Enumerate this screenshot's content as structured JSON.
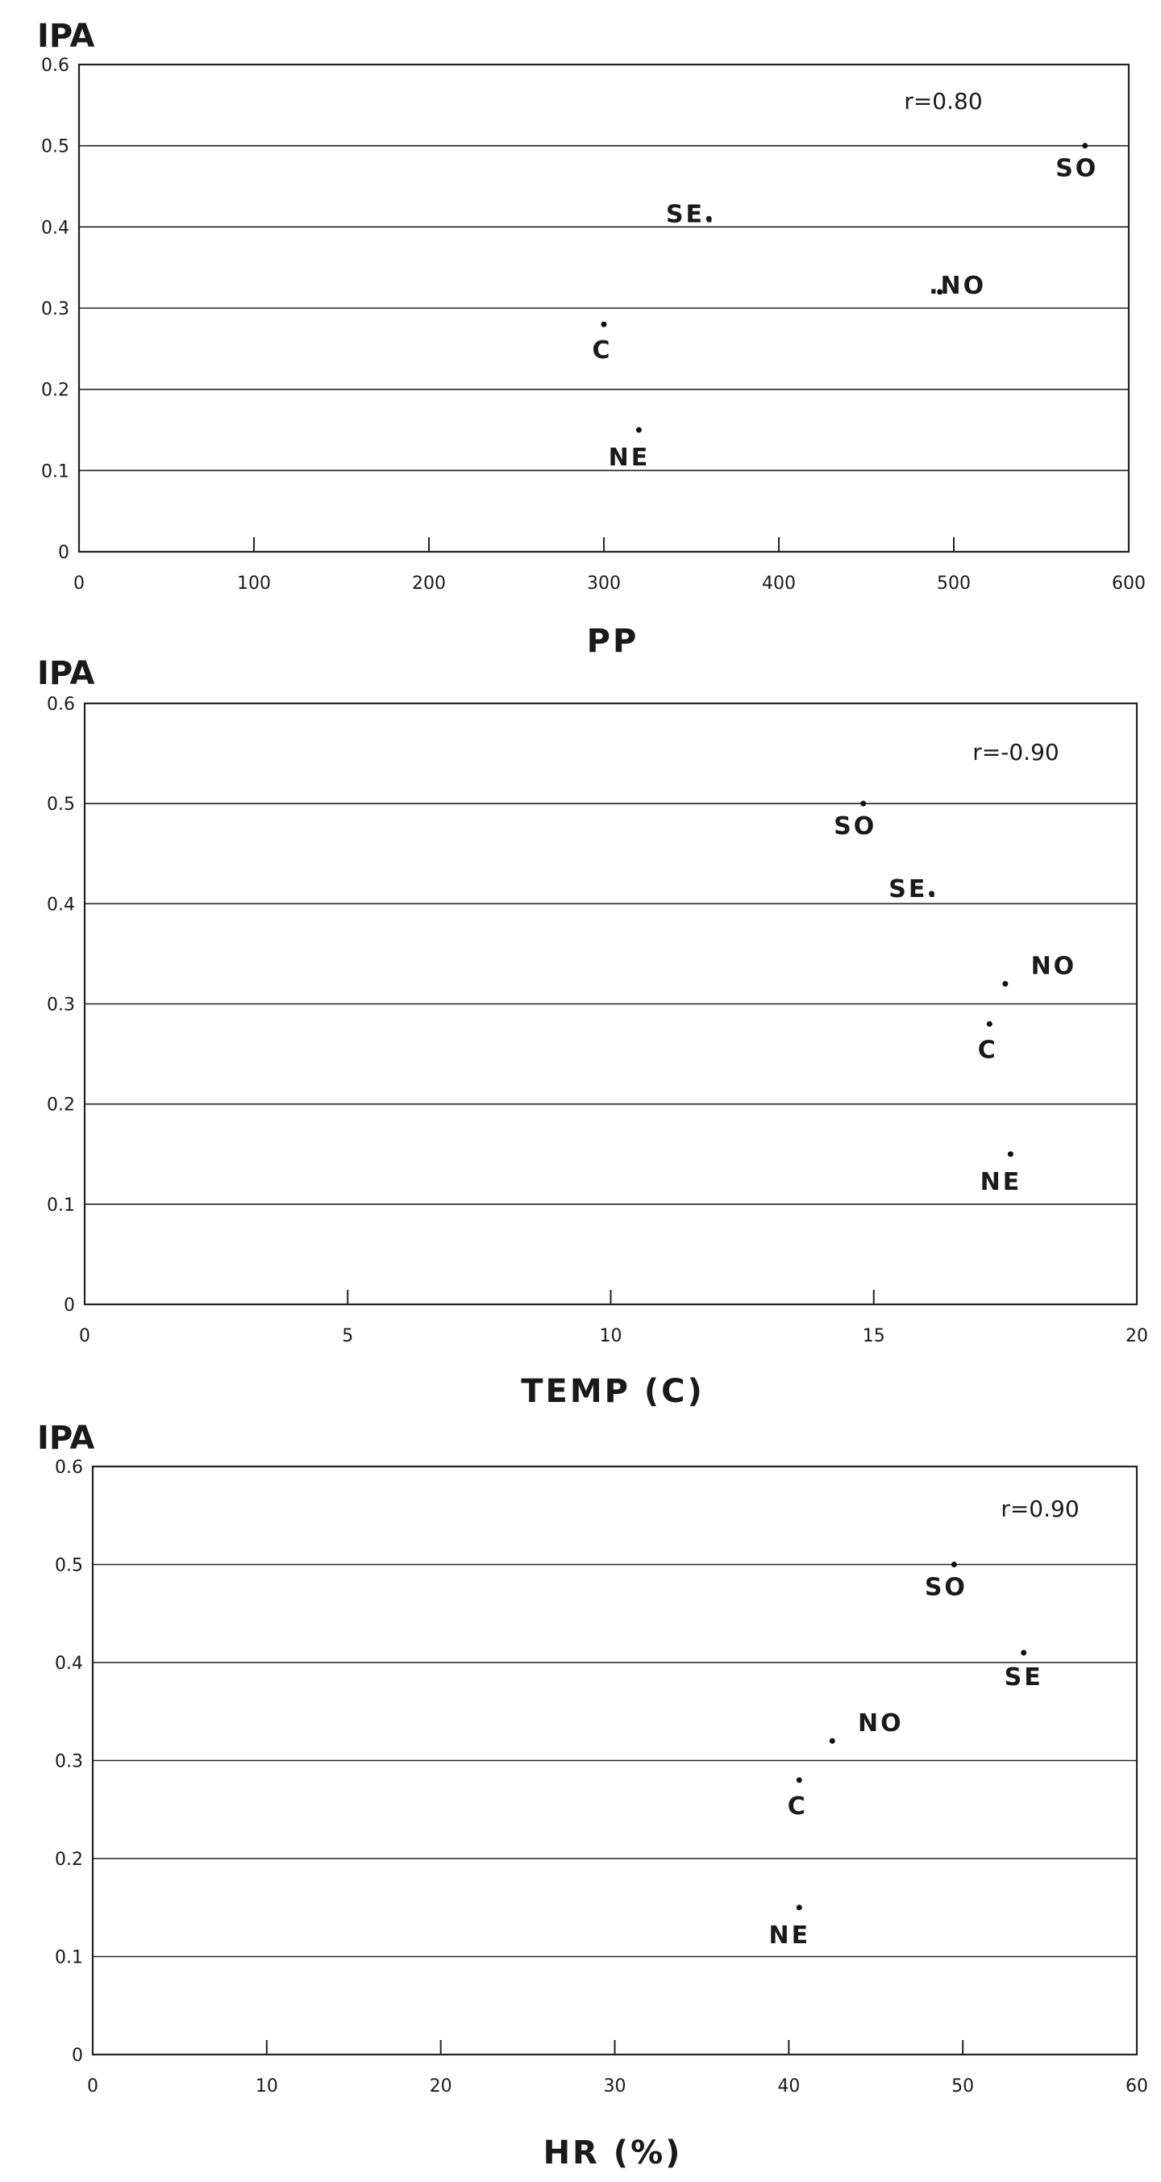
{
  "chart_data": [
    {
      "type": "scatter",
      "ylabel": "IPA",
      "xlabel": "PP",
      "correlation": "r=0.80",
      "xlim": [
        0,
        600
      ],
      "ylim": [
        0,
        0.6
      ],
      "xticks": [
        "0",
        "100",
        "200",
        "300",
        "400",
        "500",
        "600"
      ],
      "yticks": [
        "0",
        "0.1",
        "0.2",
        "0.3",
        "0.4",
        "0.5",
        "0.6"
      ],
      "grid": true,
      "points": [
        {
          "label": "SO",
          "x": 575,
          "y": 0.5
        },
        {
          "label": "SE.",
          "x": 360,
          "y": 0.41
        },
        {
          "label": ".NO",
          "x": 492,
          "y": 0.32
        },
        {
          "label": "C",
          "x": 300,
          "y": 0.28
        },
        {
          "label": "NE",
          "x": 320,
          "y": 0.15
        }
      ]
    },
    {
      "type": "scatter",
      "ylabel": "IPA",
      "xlabel": "TEMP (C)",
      "correlation": "r=-0.90",
      "xlim": [
        0,
        20
      ],
      "ylim": [
        0,
        0.6
      ],
      "xticks": [
        "0",
        "5",
        "10",
        "15",
        "20"
      ],
      "yticks": [
        "0",
        "0.1",
        "0.2",
        "0.3",
        "0.4",
        "0.5",
        "0.6"
      ],
      "grid": true,
      "points": [
        {
          "label": "SO",
          "x": 14.8,
          "y": 0.5
        },
        {
          "label": "SE.",
          "x": 16.1,
          "y": 0.41
        },
        {
          "label": "NO",
          "x": 17.5,
          "y": 0.32
        },
        {
          "label": "C",
          "x": 17.2,
          "y": 0.28
        },
        {
          "label": "NE",
          "x": 17.6,
          "y": 0.15
        }
      ]
    },
    {
      "type": "scatter",
      "ylabel": "IPA",
      "xlabel": "HR (%)",
      "correlation": "r=0.90",
      "xlim": [
        0,
        60
      ],
      "ylim": [
        0,
        0.6
      ],
      "xticks": [
        "0",
        "10",
        "20",
        "30",
        "40",
        "50",
        "60"
      ],
      "yticks": [
        "0",
        "0.1",
        "0.2",
        "0.3",
        "0.4",
        "0.5",
        "0.6"
      ],
      "grid": true,
      "points": [
        {
          "label": "SO",
          "x": 49.5,
          "y": 0.5
        },
        {
          "label": "SE",
          "x": 53.5,
          "y": 0.41
        },
        {
          "label": "NO",
          "x": 42.5,
          "y": 0.32
        },
        {
          "label": "C",
          "x": 40.6,
          "y": 0.28
        },
        {
          "label": "NE",
          "x": 40.6,
          "y": 0.15
        }
      ]
    }
  ]
}
